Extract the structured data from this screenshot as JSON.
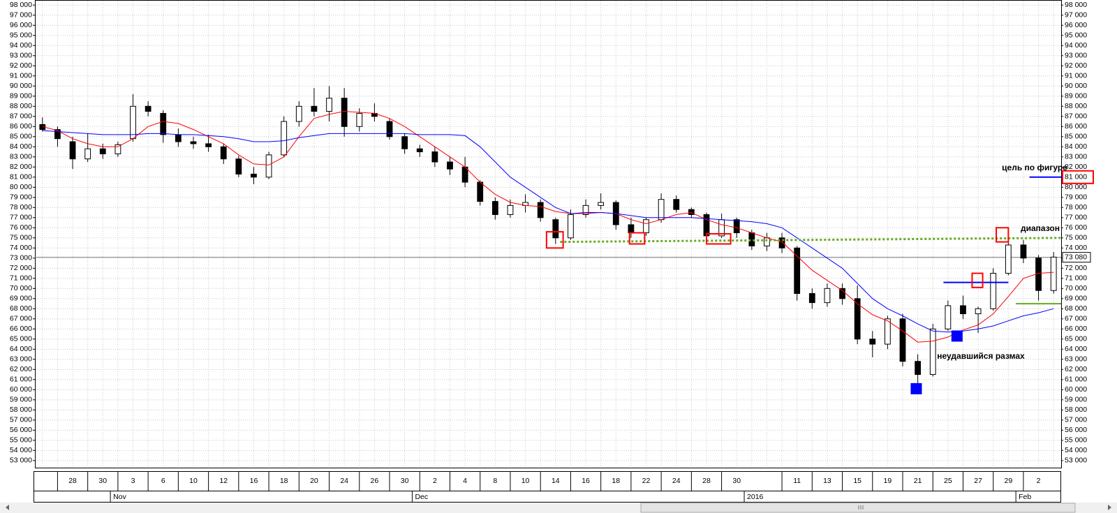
{
  "chart_data": {
    "type": "candlestick",
    "categories": [
      null,
      null,
      "28",
      null,
      "30",
      null,
      "3",
      null,
      "6",
      null,
      "10",
      null,
      "12",
      null,
      "16",
      null,
      "18",
      null,
      "20",
      null,
      "24",
      null,
      "26",
      null,
      "30",
      null,
      "2",
      null,
      "4",
      null,
      "8",
      null,
      "10",
      null,
      "14",
      null,
      "16",
      null,
      "18",
      null,
      "22",
      null,
      "24",
      null,
      "28",
      null,
      "30",
      null,
      null,
      null,
      "11",
      null,
      "13",
      null,
      "15",
      null,
      "19",
      null,
      "21",
      null,
      "25",
      null,
      "27",
      null,
      "29",
      null,
      "2",
      null
    ],
    "x_groups": [
      null,
      null,
      null,
      null,
      null,
      "Nov",
      null,
      null,
      null,
      null,
      null,
      null,
      null,
      null,
      null,
      null,
      null,
      null,
      null,
      null,
      null,
      null,
      null,
      null,
      null,
      "Dec",
      null,
      null,
      null,
      null,
      null,
      null,
      null,
      null,
      null,
      null,
      null,
      null,
      null,
      null,
      null,
      null,
      null,
      null,
      null,
      null,
      null,
      "2016",
      null,
      null,
      null,
      null,
      null,
      null,
      null,
      null,
      null,
      null,
      null,
      null,
      null,
      null,
      null,
      null,
      null,
      "Feb",
      null,
      null
    ],
    "ohlc": {
      "open": [
        86200,
        85700,
        84500,
        82800,
        83800,
        83300,
        84800,
        88000,
        87300,
        85200,
        84500,
        84300,
        84000,
        82800,
        81300,
        81000,
        83200,
        86500,
        88000,
        87500,
        88800,
        86000,
        87300,
        86500,
        85000,
        83800,
        83500,
        82500,
        82000,
        80500,
        78600,
        77300,
        78200,
        78500,
        76800,
        75000,
        77300,
        78200,
        78500,
        76300,
        75500,
        76800,
        78800,
        77800,
        77300,
        75200,
        76800,
        75500,
        74200,
        75000,
        74000,
        69500,
        68600,
        70000,
        69000,
        65000,
        64500,
        67000,
        62800,
        61500,
        66000,
        68300,
        67500,
        68000,
        71500,
        74300,
        73000,
        69800
      ],
      "high": [
        86900,
        86000,
        85000,
        85300,
        84300,
        84500,
        89200,
        88500,
        87600,
        85800,
        85000,
        85200,
        84300,
        83100,
        82000,
        83500,
        87000,
        88500,
        89800,
        90000,
        89800,
        87800,
        88300,
        86800,
        85300,
        84200,
        84000,
        83000,
        83000,
        80700,
        79000,
        78800,
        79300,
        78800,
        77000,
        77800,
        78800,
        79400,
        78700,
        77000,
        77000,
        79400,
        79200,
        78000,
        77500,
        77400,
        77000,
        75800,
        75500,
        75500,
        74200,
        70000,
        70500,
        70500,
        70300,
        65800,
        67300,
        67500,
        63500,
        66500,
        68800,
        69300,
        68200,
        72000,
        74800,
        74800,
        73300,
        73600
      ],
      "low": [
        85500,
        84000,
        81800,
        82500,
        82800,
        83000,
        84500,
        87000,
        84400,
        84000,
        83800,
        83500,
        82300,
        81000,
        80300,
        80800,
        83000,
        86000,
        87000,
        86500,
        85000,
        85500,
        86500,
        84700,
        83300,
        83000,
        82000,
        81200,
        80000,
        78200,
        76800,
        77000,
        77500,
        76600,
        74400,
        74800,
        77000,
        77800,
        75800,
        75000,
        75200,
        76500,
        77500,
        77000,
        74600,
        75000,
        75000,
        73800,
        73700,
        73500,
        68800,
        68000,
        68200,
        68400,
        64500,
        63200,
        64000,
        62300,
        60300,
        61300,
        65800,
        67000,
        65600,
        67800,
        71300,
        72500,
        68800,
        69500
      ],
      "close": [
        85700,
        84800,
        82800,
        83800,
        83300,
        84200,
        88000,
        87500,
        85200,
        84500,
        84300,
        84000,
        82800,
        81300,
        81000,
        83200,
        86500,
        88000,
        87500,
        88800,
        86000,
        87300,
        87000,
        85000,
        83800,
        83500,
        82500,
        81800,
        80500,
        78600,
        77300,
        78200,
        78500,
        77000,
        75000,
        77300,
        78200,
        78500,
        76300,
        75500,
        76800,
        78800,
        77800,
        77300,
        75200,
        76800,
        75500,
        74200,
        75000,
        74000,
        69500,
        68600,
        70000,
        69000,
        65000,
        64500,
        67000,
        62800,
        61500,
        66000,
        68300,
        67500,
        68000,
        71500,
        74300,
        73000,
        69800,
        73100
      ]
    },
    "lines": [
      {
        "color": "#ff0000",
        "values": [
          86000,
          85600,
          84800,
          84300,
          84000,
          84000,
          84800,
          86000,
          86500,
          86300,
          85700,
          85000,
          84300,
          83200,
          82300,
          82200,
          83000,
          85000,
          86800,
          87200,
          87500,
          87400,
          87300,
          86800,
          86000,
          85000,
          84000,
          83000,
          82000,
          80500,
          79300,
          78500,
          78200,
          78100,
          77600,
          77400,
          77400,
          77500,
          77400,
          76800,
          76400,
          76800,
          77300,
          77500,
          76800,
          76300,
          76000,
          75500,
          75000,
          74600,
          73200,
          71800,
          70800,
          69800,
          68500,
          67400,
          66800,
          65800,
          64700,
          64800,
          65200,
          65900,
          66400,
          67500,
          69200,
          71000,
          71500,
          71600
        ]
      },
      {
        "color": "#0000ff",
        "values": [
          85600,
          85500,
          85400,
          85300,
          85200,
          85200,
          85200,
          85300,
          85300,
          85200,
          85200,
          85100,
          85000,
          84800,
          84500,
          84500,
          84600,
          84900,
          85100,
          85300,
          85300,
          85300,
          85300,
          85300,
          85300,
          85200,
          85200,
          85200,
          85100,
          84000,
          82500,
          81000,
          80000,
          79000,
          78000,
          77400,
          77500,
          77500,
          77400,
          77200,
          77000,
          77000,
          77000,
          77000,
          76900,
          76800,
          76700,
          76600,
          76400,
          76000,
          75000,
          74000,
          73000,
          72000,
          70500,
          69000,
          68000,
          67300,
          66500,
          65800,
          65700,
          65800,
          66000,
          66300,
          66800,
          67300,
          67600,
          68000
        ]
      }
    ],
    "level": {
      "value": 73080,
      "label": "73 080",
      "color": "#808080"
    },
    "drawings": {
      "lines": [
        {
          "x": [
            34.3,
            67.6
          ],
          "y": [
            74600,
            75000
          ],
          "color": "#66aa22",
          "dash": true
        },
        {
          "x": [
            65.4,
            67.5
          ],
          "y": [
            81000,
            81000
          ],
          "color": "#0000ff",
          "dash": false
        },
        {
          "x": [
            59.7,
            64.0
          ],
          "y": [
            70600,
            70600
          ],
          "color": "#0000ff",
          "dash": false
        },
        {
          "x": [
            64.5,
            67.5
          ],
          "y": [
            68500,
            68500
          ],
          "color": "#66aa22",
          "dash": false
        }
      ],
      "boxes": [
        {
          "x": [
            33.4,
            34.5
          ],
          "y": [
            74000,
            75600
          ],
          "color": "#ff0000"
        },
        {
          "x": [
            38.9,
            39.9
          ],
          "y": [
            74400,
            75500
          ],
          "color": "#ff0000"
        },
        {
          "x": [
            44.0,
            45.6
          ],
          "y": [
            74400,
            75400
          ],
          "color": "#ff0000"
        },
        {
          "x": [
            63.2,
            64.0
          ],
          "y": [
            74600,
            76000
          ],
          "color": "#ff0000"
        },
        {
          "x": [
            61.6,
            62.3
          ],
          "y": [
            70100,
            71500
          ],
          "color": "#ff0000"
        }
      ],
      "markers": [
        {
          "x": 57.9,
          "y": 60100,
          "color": "#0000ff"
        },
        {
          "x": 60.6,
          "y": 65300,
          "color": "#0000ff"
        }
      ]
    },
    "annotations": [
      {
        "text": "цель по фигуре",
        "color": "#0000cc"
      },
      {
        "text": "диапазон",
        "color": "#0000cc"
      },
      {
        "text": "неудавшийся размах",
        "color": "#0000cc"
      }
    ],
    "ylim": [
      52300,
      98500
    ],
    "yticks": [
      {
        "value": 53000,
        "label": "53 000"
      },
      {
        "value": 54000,
        "label": "54 000"
      },
      {
        "value": 55000,
        "label": "55 000"
      },
      {
        "value": 56000,
        "label": "56 000"
      },
      {
        "value": 57000,
        "label": "57 000"
      },
      {
        "value": 58000,
        "label": "58 000"
      },
      {
        "value": 59000,
        "label": "59 000"
      },
      {
        "value": 60000,
        "label": "60 000"
      },
      {
        "value": 61000,
        "label": "61 000"
      },
      {
        "value": 62000,
        "label": "62 000"
      },
      {
        "value": 63000,
        "label": "63 000"
      },
      {
        "value": 64000,
        "label": "64 000"
      },
      {
        "value": 65000,
        "label": "65 000"
      },
      {
        "value": 66000,
        "label": "66 000"
      },
      {
        "value": 67000,
        "label": "67 000"
      },
      {
        "value": 68000,
        "label": "68 000"
      },
      {
        "value": 69000,
        "label": "69 000"
      },
      {
        "value": 70000,
        "label": "70 000"
      },
      {
        "value": 71000,
        "label": "71 000"
      },
      {
        "value": 72000,
        "label": "72 000"
      },
      {
        "value": 73000,
        "label": "73 000"
      },
      {
        "value": 74000,
        "label": "74 000"
      },
      {
        "value": 75000,
        "label": "75 000"
      },
      {
        "value": 76000,
        "label": "76 000"
      },
      {
        "value": 77000,
        "label": "77 000"
      },
      {
        "value": 78000,
        "label": "78 000"
      },
      {
        "value": 79000,
        "label": "79 000"
      },
      {
        "value": 80000,
        "label": "80 000"
      },
      {
        "value": 81000,
        "label": "81 000"
      },
      {
        "value": 82000,
        "label": "82 000"
      },
      {
        "value": 83000,
        "label": "83 000"
      },
      {
        "value": 84000,
        "label": "84 000"
      },
      {
        "value": 85000,
        "label": "85 000"
      },
      {
        "value": 86000,
        "label": "86 000"
      },
      {
        "value": 87000,
        "label": "87 000"
      },
      {
        "value": 88000,
        "label": "88 000"
      },
      {
        "value": 89000,
        "label": "89 000"
      },
      {
        "value": 90000,
        "label": "90 000"
      },
      {
        "value": 91000,
        "label": "91 000"
      },
      {
        "value": 92000,
        "label": "92 000"
      },
      {
        "value": 93000,
        "label": "93 000"
      },
      {
        "value": 94000,
        "label": "94 000"
      },
      {
        "value": 95000,
        "label": "95 000"
      },
      {
        "value": 96000,
        "label": "96 000"
      },
      {
        "value": 97000,
        "label": "97 000"
      },
      {
        "value": 98000,
        "label": "98 000"
      }
    ],
    "grid": true
  }
}
